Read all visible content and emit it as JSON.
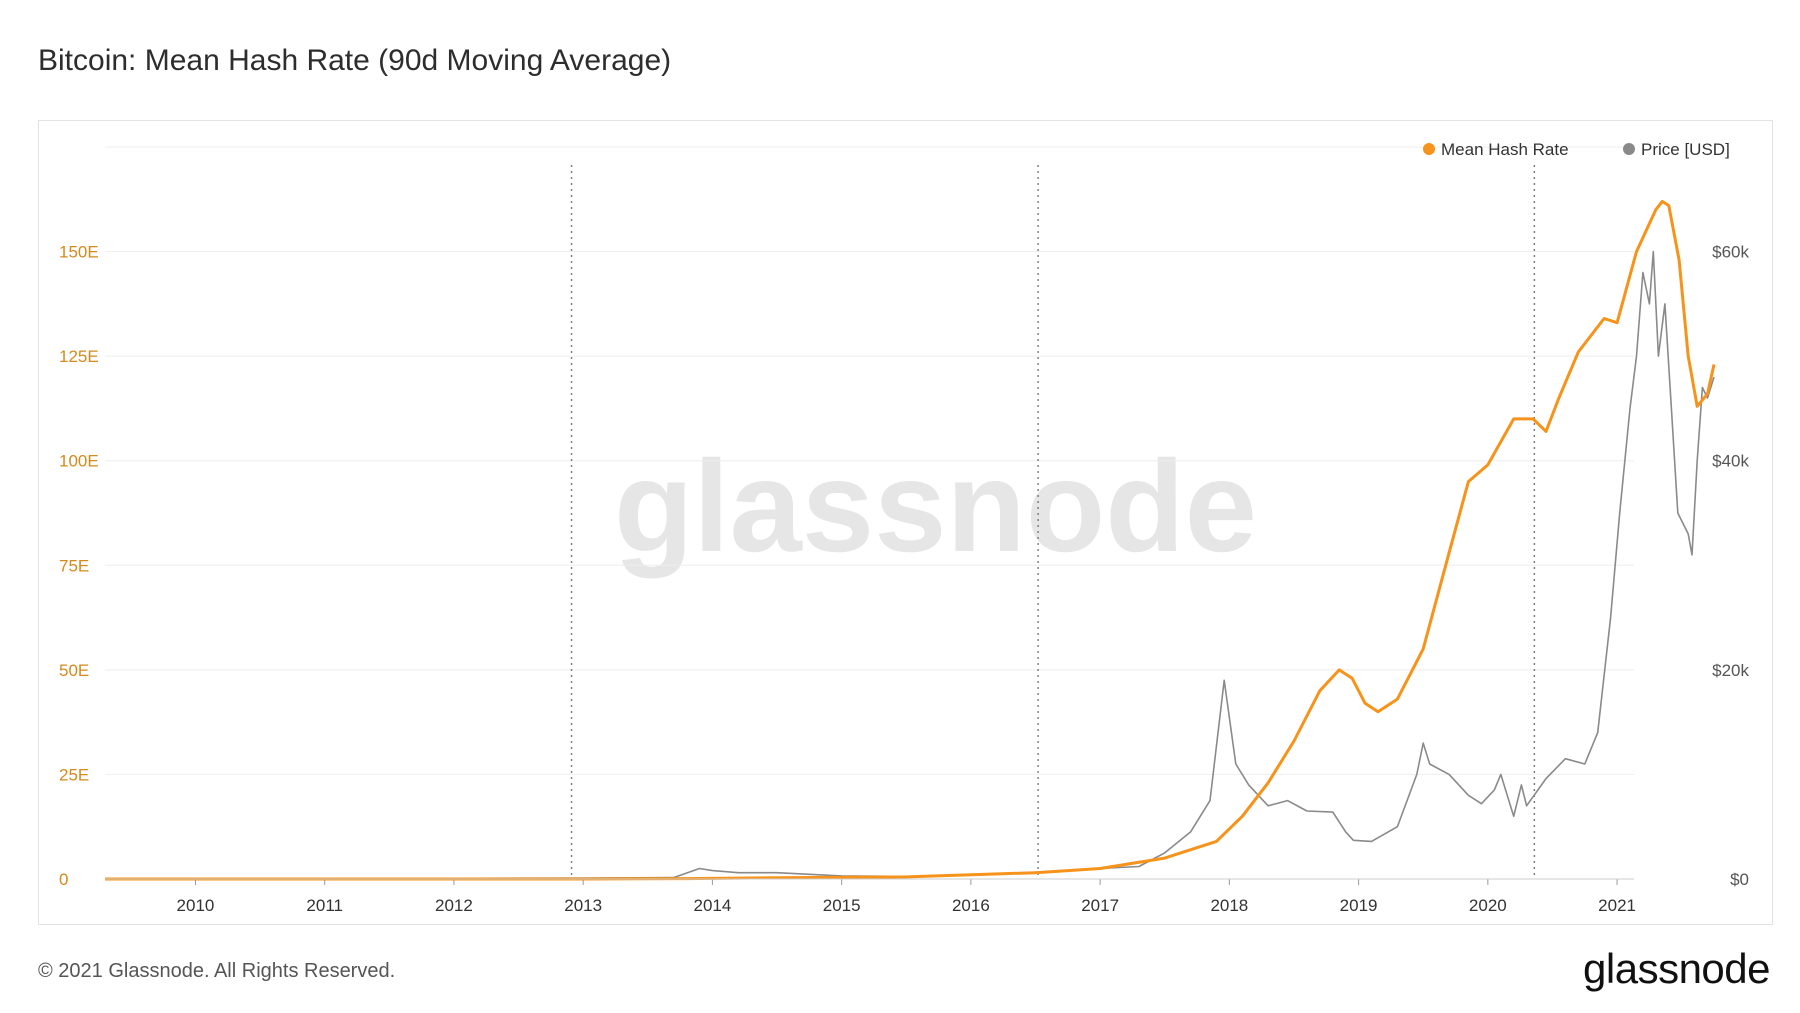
{
  "header": {
    "title": "Bitcoin: Mean Hash Rate (90d Moving Average)"
  },
  "footer": {
    "copyright": "© 2021 Glassnode. All Rights Reserved.",
    "logo_text": "glassnode"
  },
  "watermark": "glassnode",
  "colors": {
    "hash_rate": "#f7931a",
    "price": "#8a8a8a",
    "grid": "#eeeeee",
    "left_axis": "#d58a1d"
  },
  "chart_data": {
    "type": "line",
    "title": "Bitcoin: Mean Hash Rate (90d Moving Average)",
    "x_range": [
      2009.3,
      2021.75
    ],
    "x_ticks": [
      "2010",
      "2011",
      "2012",
      "2013",
      "2014",
      "2015",
      "2016",
      "2017",
      "2018",
      "2019",
      "2020",
      "2021"
    ],
    "y_left": {
      "ticks": [
        "0",
        "25E",
        "50E",
        "75E",
        "100E",
        "125E",
        "150E"
      ],
      "range": [
        0,
        175
      ],
      "unit": "EH/s"
    },
    "y_right": {
      "ticks": [
        "$0",
        "$20k",
        "$40k",
        "$60k"
      ],
      "range": [
        0,
        70000
      ]
    },
    "legend": [
      "Mean Hash Rate",
      "Price [USD]"
    ],
    "legend_position": "top-right",
    "grid": true,
    "halving_lines": [
      2012.91,
      2016.52,
      2020.36
    ],
    "series": [
      {
        "name": "Mean Hash Rate",
        "axis": "left",
        "x": [
          2009.3,
          2012.0,
          2013.0,
          2013.8,
          2014.5,
          2015.5,
          2016.5,
          2017.0,
          2017.5,
          2017.9,
          2018.1,
          2018.3,
          2018.5,
          2018.7,
          2018.85,
          2018.95,
          2019.05,
          2019.15,
          2019.3,
          2019.5,
          2019.7,
          2019.85,
          2020.0,
          2020.2,
          2020.35,
          2020.45,
          2020.55,
          2020.7,
          2020.9,
          2021.0,
          2021.15,
          2021.3,
          2021.35,
          2021.4,
          2021.48,
          2021.55,
          2021.62,
          2021.7,
          2021.75
        ],
        "y": [
          0,
          0,
          0,
          0.1,
          0.3,
          0.5,
          1.5,
          2.5,
          5,
          9,
          15,
          23,
          33,
          45,
          50,
          48,
          42,
          40,
          43,
          55,
          78,
          95,
          99,
          110,
          110,
          107,
          115,
          126,
          134,
          133,
          150,
          160,
          162,
          161,
          148,
          125,
          113,
          116,
          123
        ]
      },
      {
        "name": "Price [USD]",
        "axis": "right",
        "x": [
          2009.3,
          2010.5,
          2013.0,
          2013.7,
          2013.9,
          2014.0,
          2014.2,
          2014.5,
          2015.0,
          2015.5,
          2016.0,
          2016.5,
          2017.0,
          2017.3,
          2017.5,
          2017.7,
          2017.85,
          2017.96,
          2018.05,
          2018.15,
          2018.3,
          2018.45,
          2018.6,
          2018.8,
          2018.9,
          2018.96,
          2019.1,
          2019.3,
          2019.45,
          2019.5,
          2019.55,
          2019.7,
          2019.85,
          2019.95,
          2020.05,
          2020.1,
          2020.2,
          2020.26,
          2020.3,
          2020.45,
          2020.6,
          2020.75,
          2020.85,
          2020.95,
          2021.02,
          2021.1,
          2021.15,
          2021.2,
          2021.25,
          2021.28,
          2021.32,
          2021.37,
          2021.42,
          2021.47,
          2021.55,
          2021.58,
          2021.62,
          2021.66,
          2021.7,
          2021.75
        ],
        "y": [
          0,
          0,
          100,
          130,
          1000,
          800,
          600,
          600,
          300,
          250,
          430,
          650,
          1000,
          1200,
          2500,
          4500,
          7500,
          19000,
          11000,
          9000,
          7000,
          7500,
          6500,
          6400,
          4500,
          3700,
          3600,
          5000,
          10000,
          13000,
          11000,
          10000,
          8000,
          7200,
          8500,
          10000,
          6000,
          9000,
          7000,
          9600,
          11500,
          11000,
          14000,
          25000,
          35000,
          45000,
          50000,
          58000,
          55000,
          60000,
          50000,
          55000,
          45000,
          35000,
          33000,
          31000,
          40000,
          47000,
          46000,
          48000
        ]
      }
    ]
  }
}
